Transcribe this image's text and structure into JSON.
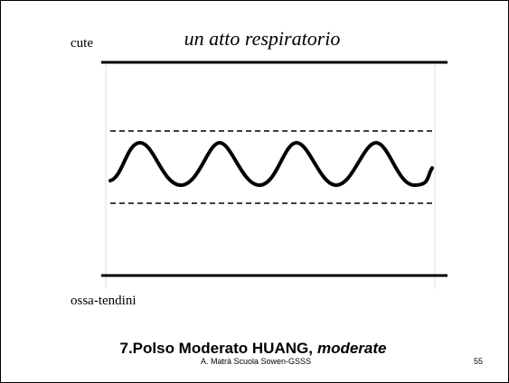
{
  "header": {
    "left_label": "cute",
    "title": "un atto respiratorio"
  },
  "bottom_label": "ossa-tendini",
  "slide_title": {
    "main": "7.Polso Moderato HUANG,",
    "emphasis": "moderate"
  },
  "footer": {
    "text": "A. Matrà Scuola Sowen-GSSS",
    "page": "55"
  }
}
